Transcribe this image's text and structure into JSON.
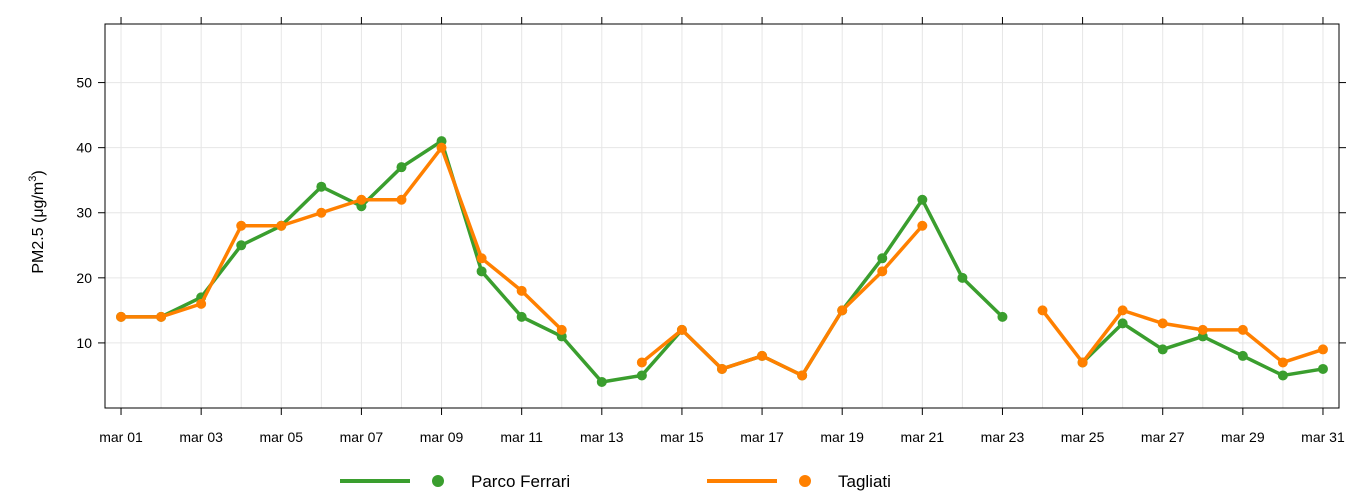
{
  "chart_data": {
    "type": "line",
    "ylabel": "PM2.5 (μg/m³)",
    "ylabel_main": "PM2.5 (μg/m",
    "ylabel_sup": "3",
    "ylabel_close": ")",
    "xlabel": "",
    "ylim": [
      0,
      59
    ],
    "xlim": [
      0.6,
      31.4
    ],
    "yticks": [
      10,
      20,
      30,
      40,
      50
    ],
    "ytick_labels": [
      "10",
      "20",
      "30",
      "40",
      "50"
    ],
    "xticks": [
      1,
      3,
      5,
      7,
      9,
      11,
      13,
      15,
      17,
      19,
      21,
      23,
      25,
      27,
      29,
      31
    ],
    "xtick_labels": [
      "mar 01",
      "mar 03",
      "mar 05",
      "mar 07",
      "mar 09",
      "mar 11",
      "mar 13",
      "mar 15",
      "mar 17",
      "mar 19",
      "mar 21",
      "mar 23",
      "mar 25",
      "mar 27",
      "mar 29",
      "mar 31"
    ],
    "x": [
      1,
      2,
      3,
      4,
      5,
      6,
      7,
      8,
      9,
      10,
      11,
      12,
      13,
      14,
      15,
      16,
      17,
      18,
      19,
      20,
      21,
      22,
      23,
      24,
      25,
      26,
      27,
      28,
      29,
      30,
      31
    ],
    "grid": true,
    "legend_position": "bottom",
    "series": [
      {
        "name": "Parco Ferrari",
        "color": "#3a9e2e",
        "values": [
          14,
          14,
          17,
          25,
          28,
          34,
          31,
          37,
          41,
          21,
          14,
          11,
          4,
          5,
          12,
          6,
          8,
          5,
          15,
          23,
          32,
          20,
          14,
          null,
          7,
          13,
          9,
          11,
          8,
          5,
          6
        ]
      },
      {
        "name": "Tagliati",
        "color": "#ff8000",
        "values": [
          14,
          14,
          16,
          28,
          28,
          30,
          32,
          32,
          40,
          23,
          18,
          12,
          null,
          7,
          12,
          6,
          8,
          5,
          15,
          21,
          28,
          null,
          null,
          15,
          7,
          15,
          13,
          12,
          12,
          7,
          9
        ]
      }
    ]
  }
}
